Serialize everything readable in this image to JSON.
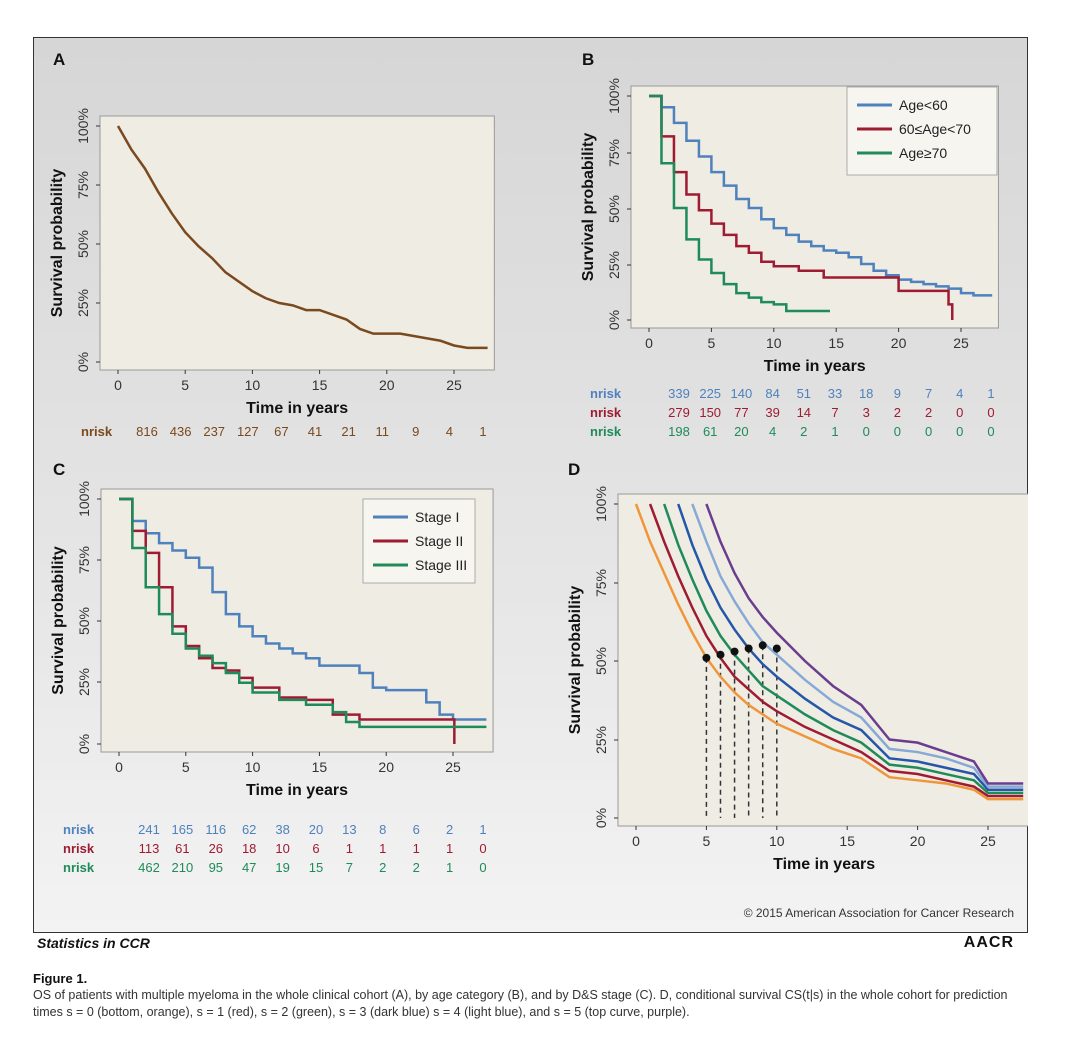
{
  "colors": {
    "brown": "#7a4a1e",
    "blue": "#4f81bd",
    "red": "#9e1b32",
    "green": "#1f8a5a",
    "orange": "#f0963a",
    "darkblue": "#2457a8",
    "lightblue": "#86a9d8",
    "purple": "#6a3d8f"
  },
  "footer": {
    "journal": "Statistics in CCR",
    "logo": "AACR",
    "copyright": "© 2015 American Association for Cancer Research"
  },
  "caption": {
    "title": "Figure 1.",
    "text": "OS of patients with multiple myeloma in the whole clinical cohort (A), by age category (B), and by D&S stage (C). D, conditional survival CS(t|s) in the whole cohort for prediction times s = 0 (bottom, orange), s = 1 (red), s = 2 (green), s = 3 (dark blue) s = 4 (light blue), and s = 5 (top curve, purple)."
  },
  "chart_data": [
    {
      "panel": "A",
      "type": "line",
      "xlabel": "Time in years",
      "ylabel": "Survival probability",
      "xlim": [
        0,
        28
      ],
      "ylim": [
        0,
        1
      ],
      "xticks": [
        "0",
        "5",
        "10",
        "15",
        "20",
        "25"
      ],
      "yticks": [
        "0%",
        "25%",
        "50%",
        "75%",
        "100%"
      ],
      "series": [
        {
          "color": "brown",
          "x": [
            0,
            1,
            2,
            3,
            4,
            5,
            6,
            7,
            8,
            9,
            10,
            11,
            12,
            13,
            14,
            15,
            16,
            17,
            18,
            19,
            20,
            21,
            22,
            23,
            24,
            25,
            26,
            27.5
          ],
          "y": [
            1.0,
            0.9,
            0.82,
            0.72,
            0.63,
            0.55,
            0.49,
            0.44,
            0.38,
            0.34,
            0.3,
            0.27,
            0.25,
            0.24,
            0.22,
            0.22,
            0.2,
            0.18,
            0.14,
            0.12,
            0.12,
            0.12,
            0.11,
            0.1,
            0.09,
            0.07,
            0.06,
            0.06
          ]
        }
      ],
      "nrisk": [
        {
          "label": "nrisk",
          "color": "brown",
          "values": [
            "816",
            "436",
            "237",
            "127",
            "67",
            "41",
            "21",
            "11",
            "9",
            "4",
            "1"
          ]
        }
      ]
    },
    {
      "panel": "B",
      "type": "line",
      "xlabel": "Time in years",
      "ylabel": "Survival probability",
      "xlim": [
        0,
        28
      ],
      "ylim": [
        0,
        1
      ],
      "xticks": [
        "0",
        "5",
        "10",
        "15",
        "20",
        "25"
      ],
      "yticks": [
        "0%",
        "25%",
        "50%",
        "75%",
        "100%"
      ],
      "legend": "top-right",
      "series": [
        {
          "name": "Age<60",
          "color": "blue",
          "x": [
            0,
            1,
            2,
            3,
            4,
            5,
            6,
            7,
            8,
            9,
            10,
            11,
            12,
            13,
            14,
            15,
            16,
            17,
            18,
            19,
            20,
            21,
            22,
            23,
            24,
            25,
            26,
            27.5
          ],
          "y": [
            1.0,
            0.95,
            0.88,
            0.8,
            0.73,
            0.66,
            0.6,
            0.54,
            0.5,
            0.45,
            0.41,
            0.38,
            0.35,
            0.33,
            0.31,
            0.3,
            0.28,
            0.25,
            0.22,
            0.2,
            0.18,
            0.17,
            0.16,
            0.15,
            0.14,
            0.12,
            0.11,
            0.11
          ]
        },
        {
          "name": "60≤Age<70",
          "color": "red",
          "x": [
            0,
            1,
            2,
            3,
            4,
            5,
            6,
            7,
            8,
            9,
            10,
            12,
            14,
            16,
            18,
            20,
            22,
            23,
            24,
            24.3
          ],
          "y": [
            1.0,
            0.82,
            0.66,
            0.56,
            0.49,
            0.43,
            0.38,
            0.33,
            0.3,
            0.26,
            0.24,
            0.22,
            0.19,
            0.19,
            0.19,
            0.13,
            0.13,
            0.13,
            0.07,
            0.0
          ]
        },
        {
          "name": "Age≥70",
          "color": "green",
          "x": [
            0,
            1,
            2,
            3,
            4,
            5,
            6,
            7,
            8,
            9,
            10,
            11,
            12,
            13,
            14,
            14.5
          ],
          "y": [
            1.0,
            0.7,
            0.5,
            0.36,
            0.27,
            0.21,
            0.16,
            0.12,
            0.1,
            0.08,
            0.07,
            0.04,
            0.04,
            0.04,
            0.04,
            0.04
          ]
        }
      ],
      "nrisk": [
        {
          "label": "nrisk",
          "color": "blue",
          "values": [
            "339",
            "225",
            "140",
            "84",
            "51",
            "33",
            "18",
            "9",
            "7",
            "4",
            "1"
          ]
        },
        {
          "label": "nrisk",
          "color": "red",
          "values": [
            "279",
            "150",
            "77",
            "39",
            "14",
            "7",
            "3",
            "2",
            "2",
            "0",
            "0"
          ]
        },
        {
          "label": "nrisk",
          "color": "green",
          "values": [
            "198",
            "61",
            "20",
            "4",
            "2",
            "1",
            "0",
            "0",
            "0",
            "0",
            "0"
          ]
        }
      ]
    },
    {
      "panel": "C",
      "type": "line",
      "xlabel": "Time in years",
      "ylabel": "Survival probability",
      "xlim": [
        0,
        28
      ],
      "ylim": [
        0,
        1
      ],
      "xticks": [
        "0",
        "5",
        "10",
        "15",
        "20",
        "25"
      ],
      "yticks": [
        "0%",
        "25%",
        "50%",
        "75%",
        "100%"
      ],
      "legend": "top-right",
      "series": [
        {
          "name": "Stage I",
          "color": "blue",
          "x": [
            0,
            1,
            2,
            3,
            4,
            5,
            6,
            7,
            8,
            9,
            10,
            11,
            12,
            13,
            14,
            15,
            16,
            17,
            18,
            19,
            20,
            21,
            22,
            23,
            24,
            25,
            26,
            27.5
          ],
          "y": [
            1.0,
            0.91,
            0.86,
            0.82,
            0.79,
            0.76,
            0.72,
            0.62,
            0.53,
            0.48,
            0.44,
            0.41,
            0.39,
            0.37,
            0.35,
            0.32,
            0.32,
            0.32,
            0.29,
            0.23,
            0.22,
            0.22,
            0.22,
            0.17,
            0.12,
            0.1,
            0.1,
            0.1
          ]
        },
        {
          "name": "Stage II",
          "color": "red",
          "x": [
            0,
            1,
            2,
            3,
            4,
            5,
            6,
            7,
            8,
            9,
            10,
            12,
            14,
            15,
            16,
            18,
            20,
            22,
            24,
            25,
            25.1
          ],
          "y": [
            1.0,
            0.87,
            0.78,
            0.64,
            0.48,
            0.4,
            0.35,
            0.31,
            0.3,
            0.27,
            0.23,
            0.19,
            0.18,
            0.18,
            0.12,
            0.1,
            0.1,
            0.1,
            0.1,
            0.1,
            0.0
          ]
        },
        {
          "name": "Stage III",
          "color": "green",
          "x": [
            0,
            1,
            2,
            3,
            4,
            5,
            6,
            7,
            8,
            9,
            10,
            12,
            14,
            16,
            17,
            18,
            20,
            22,
            24,
            26,
            27.5
          ],
          "y": [
            1.0,
            0.8,
            0.64,
            0.53,
            0.45,
            0.39,
            0.36,
            0.33,
            0.29,
            0.25,
            0.21,
            0.18,
            0.16,
            0.13,
            0.09,
            0.07,
            0.07,
            0.07,
            0.07,
            0.07,
            0.07
          ]
        }
      ],
      "nrisk": [
        {
          "label": "nrisk",
          "color": "blue",
          "values": [
            "241",
            "165",
            "116",
            "62",
            "38",
            "20",
            "13",
            "8",
            "6",
            "2",
            "1"
          ]
        },
        {
          "label": "nrisk",
          "color": "red",
          "values": [
            "113",
            "61",
            "26",
            "18",
            "10",
            "6",
            "1",
            "1",
            "1",
            "1",
            "0"
          ]
        },
        {
          "label": "nrisk",
          "color": "green",
          "values": [
            "462",
            "210",
            "95",
            "47",
            "19",
            "15",
            "7",
            "2",
            "2",
            "1",
            "0"
          ]
        }
      ]
    },
    {
      "panel": "D",
      "type": "line",
      "xlabel": "Time in years",
      "ylabel": "Survival probability",
      "xlim": [
        0,
        28
      ],
      "ylim": [
        0,
        1
      ],
      "xticks": [
        "0",
        "5",
        "10",
        "15",
        "20",
        "25"
      ],
      "yticks": [
        "0%",
        "25%",
        "50%",
        "75%",
        "100%"
      ],
      "series": [
        {
          "name": "s = 0",
          "color": "orange",
          "x": [
            0,
            1,
            2,
            3,
            4,
            5,
            6,
            7,
            8,
            9,
            10,
            12,
            14,
            16,
            18,
            20,
            22,
            24,
            25,
            27.5
          ],
          "y": [
            1.0,
            0.88,
            0.78,
            0.68,
            0.59,
            0.51,
            0.45,
            0.4,
            0.36,
            0.33,
            0.3,
            0.26,
            0.22,
            0.19,
            0.13,
            0.12,
            0.11,
            0.09,
            0.06,
            0.06
          ]
        },
        {
          "name": "s = 1",
          "color": "red",
          "x": [
            1,
            2,
            3,
            4,
            5,
            6,
            7,
            8,
            9,
            10,
            12,
            14,
            16,
            18,
            20,
            22,
            24,
            25,
            27.5
          ],
          "y": [
            1.0,
            0.88,
            0.77,
            0.67,
            0.58,
            0.51,
            0.45,
            0.41,
            0.37,
            0.34,
            0.29,
            0.25,
            0.21,
            0.15,
            0.14,
            0.12,
            0.1,
            0.07,
            0.07
          ]
        },
        {
          "name": "s = 2",
          "color": "green",
          "x": [
            2,
            3,
            4,
            5,
            6,
            7,
            8,
            9,
            10,
            12,
            14,
            16,
            18,
            20,
            22,
            24,
            25,
            27.5
          ],
          "y": [
            1.0,
            0.87,
            0.76,
            0.66,
            0.58,
            0.52,
            0.47,
            0.42,
            0.39,
            0.33,
            0.28,
            0.24,
            0.17,
            0.16,
            0.14,
            0.12,
            0.08,
            0.08
          ]
        },
        {
          "name": "s = 3",
          "color": "darkblue",
          "x": [
            3,
            4,
            5,
            6,
            7,
            8,
            9,
            10,
            12,
            14,
            16,
            18,
            20,
            22,
            24,
            25,
            27.5
          ],
          "y": [
            1.0,
            0.87,
            0.76,
            0.67,
            0.6,
            0.54,
            0.49,
            0.45,
            0.38,
            0.32,
            0.28,
            0.19,
            0.18,
            0.16,
            0.14,
            0.09,
            0.09
          ]
        },
        {
          "name": "s = 4",
          "color": "lightblue",
          "x": [
            4,
            5,
            6,
            7,
            8,
            9,
            10,
            12,
            14,
            16,
            18,
            20,
            22,
            24,
            25,
            27.5
          ],
          "y": [
            1.0,
            0.88,
            0.77,
            0.69,
            0.62,
            0.56,
            0.52,
            0.44,
            0.37,
            0.32,
            0.22,
            0.21,
            0.19,
            0.16,
            0.1,
            0.1
          ]
        },
        {
          "name": "s = 5",
          "color": "purple",
          "x": [
            5,
            6,
            7,
            8,
            9,
            10,
            12,
            14,
            16,
            18,
            20,
            22,
            24,
            25,
            27.5
          ],
          "y": [
            1.0,
            0.88,
            0.78,
            0.7,
            0.64,
            0.59,
            0.5,
            0.42,
            0.36,
            0.25,
            0.24,
            0.21,
            0.18,
            0.11,
            0.11
          ]
        }
      ],
      "markers": [
        {
          "x": 5,
          "y": 0.51
        },
        {
          "x": 6,
          "y": 0.52
        },
        {
          "x": 7,
          "y": 0.53
        },
        {
          "x": 8,
          "y": 0.54
        },
        {
          "x": 9,
          "y": 0.55
        },
        {
          "x": 10,
          "y": 0.54
        }
      ]
    }
  ]
}
